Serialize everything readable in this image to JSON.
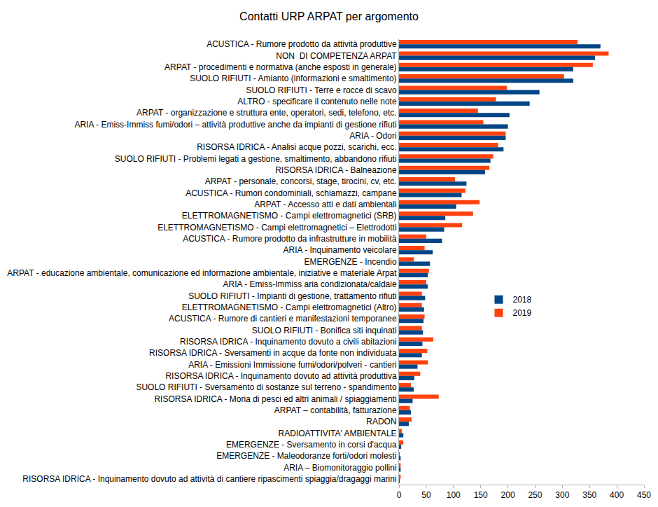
{
  "chart_data": {
    "type": "bar",
    "orientation": "horizontal",
    "title": "Contatti URP ARPAT per argomento",
    "categories": [
      "ACUSTICA - Rumore prodotto da attività produttive",
      "NON  DI COMPETENZA ARPAT",
      "ARPAT - procedimenti e normativa (anche esposti in generale)",
      "SUOLO RIFIUTI - Amianto (informazioni e smaltimento)",
      "SUOLO RIFIUTI - Terre e rocce di scavo",
      "ALTRO - specificare il contenuto nelle note",
      "ARPAT - organizzazione e struttura ente, operatori, sedi, telefono, etc.",
      "ARIA - Emiss-Immiss fumi/odori – attività produttive anche da impianti di gestione rifiuti",
      "ARIA - Odori",
      "RISORSA IDRICA - Analisi acque pozzi, scarichi, ecc.",
      "SUOLO RIFIUTI - Problemi legati a gestione, smaltimento, abbandono rifiuti",
      "RISORSA IDRICA - Balneazione",
      "ARPAT - personale, concorsi, stage, tirocini, cv, etc.",
      "ACUSTICA - Rumori condominiali, schiamazzi, campane",
      "ARPAT - Accesso atti e dati ambientali",
      "ELETTROMAGNETISMO - Campi elettromagnetici (SRB)",
      "ELETTROMAGNETISMO - Campi elettromagnetici – Elettrodotti",
      "ACUSTICA - Rumore prodotto da infrastrutture in mobilità",
      "ARIA - Inquinamento veicolare",
      "EMERGENZE - Incendio",
      "ARPAT - educazione ambientale, comunicazione ed informazione ambientale, iniziative e materiale Arpat",
      "ARIA - Emiss-Immiss aria condizionata/caldaie",
      "SUOLO RIFIUTI - Impianti di gestione, trattamento rifiuti",
      "ELETTROMAGNETISMO - Campi elettromagnetici (Altro)",
      "ACUSTICA - Rumore di cantieri e manifestazioni temporanee",
      "SUOLO RIFIUTI - Bonifica siti inquinati",
      "RISORSA IDRICA - Inquinamento dovuto a civili abitazioni",
      "RISORSA IDRICA - Sversamenti in acque da fonte non individuata",
      "ARIA - Emissioni Immissione fumi/odori/polveri - cantieri",
      "RISORSA IDRICA - Inquinamento dovuto ad attività produttiva",
      "SUOLO RIFIUTI - Sversamento di sostanze sul terreno - spandimento",
      "RISORSA IDRICA - Moria di pesci ed altri animali / spiaggiamenti",
      "ARPAT – contabilità, fatturazione",
      "RADON",
      "RADIOATTIVITA' AMBIENTALE",
      "EMERGENZE - Sversamento in corsi d'acqua",
      "EMERGENZE - Maleodoranze forti/odori molesti",
      "ARIA – Biomonitoraggio pollini",
      "RISORSA IDRICA - Inquinamento dovuto ad attività di cantiere ripascimenti spiaggia/dragaggi marini"
    ],
    "series": [
      {
        "name": "2018",
        "color": "#004586",
        "values": [
          370,
          360,
          320,
          320,
          258,
          240,
          203,
          200,
          196,
          192,
          168,
          158,
          124,
          115,
          105,
          85,
          83,
          79,
          62,
          57,
          53,
          53,
          48,
          46,
          45,
          44,
          43,
          42,
          34,
          28,
          27,
          25,
          22,
          18,
          8,
          4,
          3,
          3,
          1
        ]
      },
      {
        "name": "2019",
        "color": "#ff420e",
        "values": [
          328,
          385,
          356,
          303,
          198,
          178,
          145,
          155,
          196,
          182,
          173,
          166,
          103,
          122,
          148,
          136,
          116,
          50,
          47,
          27,
          55,
          50,
          42,
          42,
          47,
          42,
          63,
          52,
          53,
          39,
          22,
          73,
          20,
          23,
          5,
          8,
          1,
          3,
          3
        ]
      }
    ],
    "xlim": [
      0,
      450
    ],
    "xticks": [
      0,
      50,
      100,
      150,
      200,
      250,
      300,
      350,
      400,
      450
    ],
    "grid": false,
    "legend": "right"
  }
}
